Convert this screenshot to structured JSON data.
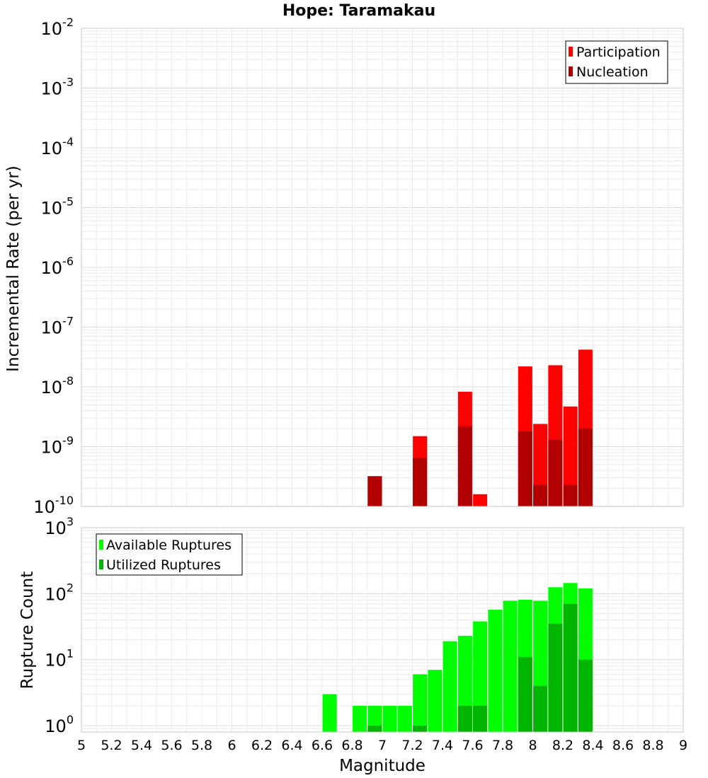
{
  "chart_data": [
    {
      "type": "bar",
      "title": "Hope: Taramakau",
      "xlabel": "Magnitude",
      "ylabel": "Incremental Rate (per yr)",
      "yscale": "log",
      "ylim": [
        1e-10,
        0.01
      ],
      "xlim": [
        5,
        9
      ],
      "y_tick_exponents": [
        -10,
        -9,
        -8,
        -7,
        -6,
        -5,
        -4,
        -3,
        -2
      ],
      "grid": true,
      "legend_position": "top-right",
      "series": [
        {
          "name": "Participation",
          "color": "#ff0000",
          "x": [
            6.95,
            7.25,
            7.55,
            7.65,
            7.95,
            8.05,
            8.15,
            8.25,
            8.35
          ],
          "values": [
            3.2e-10,
            1.5e-09,
            8.3e-09,
            1.6e-10,
            2.2e-08,
            2.4e-09,
            2.3e-08,
            4.7e-09,
            4.2e-08
          ]
        },
        {
          "name": "Nucleation",
          "color": "#b00000",
          "x": [
            6.95,
            7.25,
            7.55,
            7.95,
            8.05,
            8.15,
            8.25,
            8.35
          ],
          "values": [
            3.2e-10,
            6.5e-10,
            2.2e-09,
            1.8e-09,
            2.3e-10,
            1.3e-09,
            2.3e-10,
            2e-09
          ]
        }
      ]
    },
    {
      "type": "bar",
      "xlabel": "Magnitude",
      "ylabel": "Rupture Count",
      "yscale": "log",
      "ylim": [
        0.8,
        1000
      ],
      "xlim": [
        5,
        9
      ],
      "y_tick_exponents": [
        0,
        1,
        2,
        3
      ],
      "x_ticks": [
        "5",
        "5.2",
        "5.4",
        "5.6",
        "5.8",
        "6",
        "6.2",
        "6.4",
        "6.6",
        "6.8",
        "7",
        "7.2",
        "7.4",
        "7.6",
        "7.8",
        "8",
        "8.2",
        "8.4",
        "8.6",
        "8.8",
        "9"
      ],
      "grid": true,
      "legend_position": "top-left",
      "series": [
        {
          "name": "Available Ruptures",
          "color": "#00ff00",
          "x": [
            6.65,
            6.85,
            6.95,
            7.05,
            7.15,
            7.25,
            7.35,
            7.45,
            7.55,
            7.65,
            7.75,
            7.85,
            7.95,
            8.05,
            8.15,
            8.25,
            8.35
          ],
          "values": [
            3,
            2,
            2,
            2,
            2,
            6,
            7,
            19,
            23,
            38,
            57,
            78,
            81,
            78,
            125,
            145,
            120
          ]
        },
        {
          "name": "Utilized Ruptures",
          "color": "#00b400",
          "x": [
            6.95,
            7.25,
            7.55,
            7.65,
            7.95,
            8.05,
            8.15,
            8.25,
            8.35
          ],
          "values": [
            1,
            1,
            2,
            2,
            11,
            4,
            35,
            70,
            10
          ]
        }
      ]
    }
  ]
}
